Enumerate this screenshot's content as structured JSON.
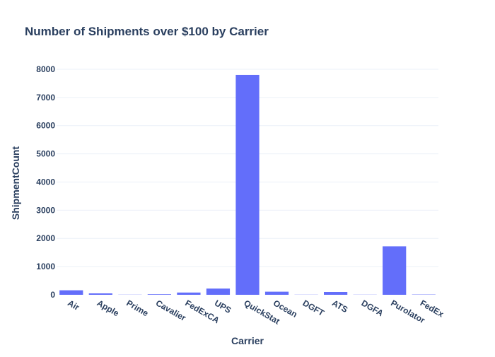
{
  "chart_data": {
    "type": "bar",
    "title": "Number of Shipments over $100 by Carrier",
    "xlabel": "Carrier",
    "ylabel": "ShipmentCount",
    "categories": [
      "Air",
      "Apple",
      "Prime",
      "Cavalier",
      "FedExCA",
      "UPS",
      "QuickStat",
      "Ocean",
      "DGFT",
      "ATS",
      "DGFA",
      "Purolator",
      "FedEx"
    ],
    "values": [
      160,
      50,
      5,
      20,
      80,
      220,
      7800,
      110,
      5,
      100,
      5,
      1720,
      10
    ],
    "ylim": [
      0,
      8200
    ],
    "yticks": [
      0,
      1000,
      2000,
      3000,
      4000,
      5000,
      6000,
      7000,
      8000
    ],
    "grid": true,
    "bar_color": "#636efa",
    "legend": "none"
  }
}
